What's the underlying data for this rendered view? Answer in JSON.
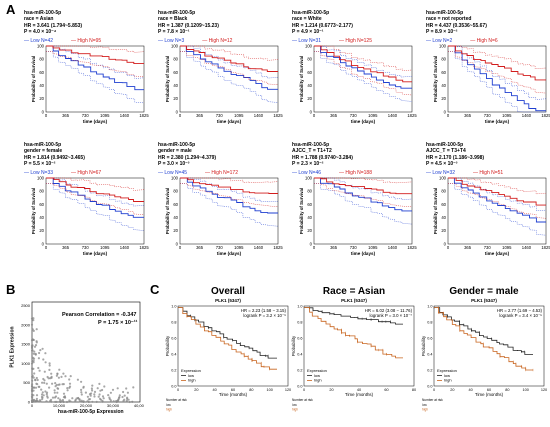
{
  "panels": {
    "a": "A",
    "b": "B",
    "c": "C"
  },
  "km_common": {
    "low_label_prefix": "Low N=",
    "high_label_prefix": "High N=",
    "xlabel": "time (days)",
    "ylabel": "Probability of Survival",
    "xticks": [
      "0",
      "365",
      "730",
      "1095",
      "1460",
      "1825"
    ],
    "yticks": [
      "0",
      "20",
      "40",
      "60",
      "80",
      "100"
    ]
  },
  "km_panels": [
    {
      "mirna": "hsa-miR-100-5p",
      "group": "race = Asian",
      "hr": "HR = 3.641 (1.794~5.853)",
      "p": "P = 4.0 × 10⁻⁴",
      "low_n": "42",
      "high_n": "95"
    },
    {
      "mirna": "hsa-miR-100-5p",
      "group": "race = Black",
      "hr": "HR = 1.387 (0.1209~15.23)",
      "p": "P = 7.8 × 10⁻¹",
      "low_n": "3",
      "high_n": "12"
    },
    {
      "mirna": "hsa-miR-100-5p",
      "group": "race = White",
      "hr": "HR = 1.214 (0.6773~2.177)",
      "p": "P = 4.9 × 10⁻¹",
      "low_n": "31",
      "high_n": "125"
    },
    {
      "mirna": "hsa-miR-100-5p",
      "group": "race = not reported",
      "hr": "HR = 4.437 (0.3536~55.67)",
      "p": "P = 8.9 × 10⁻²",
      "low_n": "2",
      "high_n": "6"
    },
    {
      "mirna": "hsa-miR-100-5p",
      "group": "gender = female",
      "hr": "HR = 1.814 (0.9492~3.465)",
      "p": "P = 5.5 × 10⁻²",
      "low_n": "33",
      "high_n": "67"
    },
    {
      "mirna": "hsa-miR-100-5p",
      "group": "gender = male",
      "hr": "HR = 2.380 (1.294~4.379)",
      "p": "P = 3.0 × 10⁻³",
      "low_n": "45",
      "high_n": "172"
    },
    {
      "mirna": "hsa-miR-100-5p",
      "group": "AJCC_T = T1+T2",
      "hr": "HR = 1.788 (0.9740~3.284)",
      "p": "P = 2.3 × 10⁻²",
      "low_n": "46",
      "high_n": "188"
    },
    {
      "mirna": "hsa-miR-100-5p",
      "group": "AJCC_T = T3+T4",
      "hr": "HR = 2.170 (1.186~3.998)",
      "p": "P = 4.5 × 10⁻³",
      "low_n": "32",
      "high_n": "51"
    }
  ],
  "scatter": {
    "corr_text": "Pearson Correlation = -0.347",
    "p_text": "P = 1.75 × 10⁻¹¹",
    "ylabel": "PLK1 Expression",
    "xlabel": "hsa-miR-100-5p Expression",
    "xticks": [
      "0",
      "10,000",
      "20,000",
      "30,000",
      "40,000"
    ],
    "yticks": [
      "0",
      "500",
      "1000",
      "1500",
      "2000",
      "2500"
    ]
  },
  "kmc_common": {
    "ylabel": "Probability",
    "xlabel": "Time (months)",
    "legend_title": "Expression",
    "legend_low": "low",
    "legend_high": "high",
    "risk_title": "Number at risk",
    "yticks": [
      "0.0",
      "0.2",
      "0.4",
      "0.6",
      "0.8",
      "1.0"
    ]
  },
  "kmc_panels": [
    {
      "title": "Overall",
      "gene": "PLK1 (5347)",
      "hr": "HR = 2.23 (1.58 − 3.15)",
      "logrank": "logrank P = 3.2 × 10⁻⁶",
      "xticks": [
        "0",
        "20",
        "40",
        "60",
        "80",
        "100",
        "120"
      ]
    },
    {
      "title": "Race = Asian",
      "gene": "PLK1 (5347)",
      "hr": "HR = 6.02 (3.08 − 11.76)",
      "logrank": "logrank P = 3.0 × 10⁻⁷",
      "xticks": [
        "0",
        "20",
        "40",
        "60",
        "80"
      ]
    },
    {
      "title": "Gender = male",
      "gene": "PLK1 (5347)",
      "hr": "HR = 2.77 (1.69 − 4.53)",
      "logrank": "logrank P = 3.4 × 10⁻⁵",
      "xticks": [
        "0",
        "20",
        "40",
        "60",
        "80",
        "100",
        "120"
      ]
    }
  ],
  "colors": {
    "low": "#1f3fd0",
    "high": "#d21c1c",
    "kmc_low": "#222222",
    "kmc_high": "#c8641e",
    "scatter": "#8a8a8a"
  }
}
